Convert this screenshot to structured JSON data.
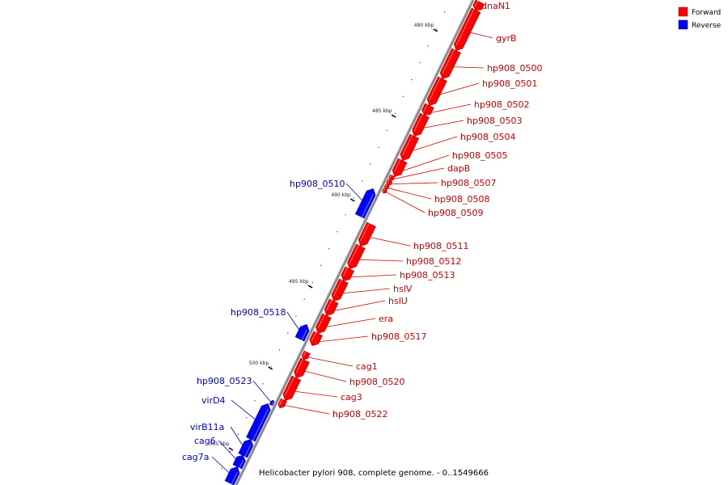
{
  "legend": [
    {
      "label": "Forward",
      "color": "#ff0000"
    },
    {
      "label": "Reverse",
      "color": "#0000ff"
    }
  ],
  "caption": "Helicobacter pylori 908, complete genome. - 0..1549666",
  "ticks": [
    "480 kbp",
    "485 kbp",
    "490 kbp",
    "495 kbp",
    "500 kbp",
    "505 kbp"
  ],
  "genes": [
    {
      "name": "dnaN1",
      "strand": "forward"
    },
    {
      "name": "gyrB",
      "strand": "forward"
    },
    {
      "name": "hp908_0500",
      "strand": "forward"
    },
    {
      "name": "hp908_0501",
      "strand": "forward"
    },
    {
      "name": "hp908_0502",
      "strand": "forward"
    },
    {
      "name": "hp908_0503",
      "strand": "forward"
    },
    {
      "name": "hp908_0504",
      "strand": "forward"
    },
    {
      "name": "hp908_0505",
      "strand": "forward"
    },
    {
      "name": "dapB",
      "strand": "forward"
    },
    {
      "name": "hp908_0507",
      "strand": "forward"
    },
    {
      "name": "hp908_0508",
      "strand": "forward"
    },
    {
      "name": "hp908_0509",
      "strand": "forward"
    },
    {
      "name": "hp908_0510",
      "strand": "reverse"
    },
    {
      "name": "hp908_0511",
      "strand": "forward"
    },
    {
      "name": "hp908_0512",
      "strand": "forward"
    },
    {
      "name": "hp908_0513",
      "strand": "forward"
    },
    {
      "name": "hslV",
      "strand": "forward"
    },
    {
      "name": "hslU",
      "strand": "forward"
    },
    {
      "name": "era",
      "strand": "forward"
    },
    {
      "name": "hp908_0517",
      "strand": "forward"
    },
    {
      "name": "hp908_0518",
      "strand": "reverse"
    },
    {
      "name": "cag1",
      "strand": "forward"
    },
    {
      "name": "hp908_0520",
      "strand": "forward"
    },
    {
      "name": "cag3",
      "strand": "forward"
    },
    {
      "name": "hp908_0522",
      "strand": "forward"
    },
    {
      "name": "hp908_0523",
      "strand": "reverse"
    },
    {
      "name": "virD4",
      "strand": "reverse"
    },
    {
      "name": "virB11a",
      "strand": "reverse"
    },
    {
      "name": "cag6",
      "strand": "reverse"
    },
    {
      "name": "cag7a",
      "strand": "reverse"
    }
  ]
}
